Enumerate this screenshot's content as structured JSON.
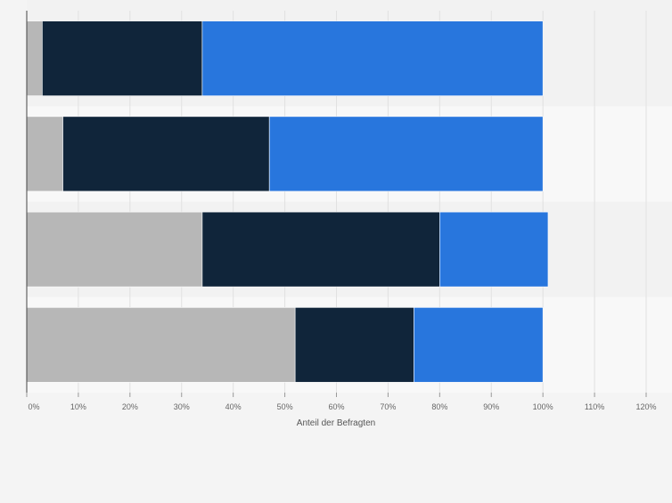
{
  "chart_data": {
    "type": "bar",
    "orientation": "horizontal",
    "stacked": true,
    "categories": [
      "",
      "",
      "",
      ""
    ],
    "series": [
      {
        "color": "#b7b7b7",
        "values": [
          3,
          7,
          34,
          52
        ]
      },
      {
        "color": "#10253a",
        "values": [
          31,
          40,
          46,
          23
        ]
      },
      {
        "color": "#2876dd",
        "values": [
          66,
          53,
          21,
          25
        ]
      }
    ],
    "xlim": [
      0,
      120
    ],
    "xticks": [
      "0%",
      "10%",
      "20%",
      "30%",
      "40%",
      "50%",
      "60%",
      "70%",
      "80%",
      "90%",
      "100%",
      "110%",
      "120%"
    ],
    "xlabel": "Anteil der Befragten",
    "ylabel": "",
    "title": "",
    "grid": true,
    "legend": "none"
  }
}
